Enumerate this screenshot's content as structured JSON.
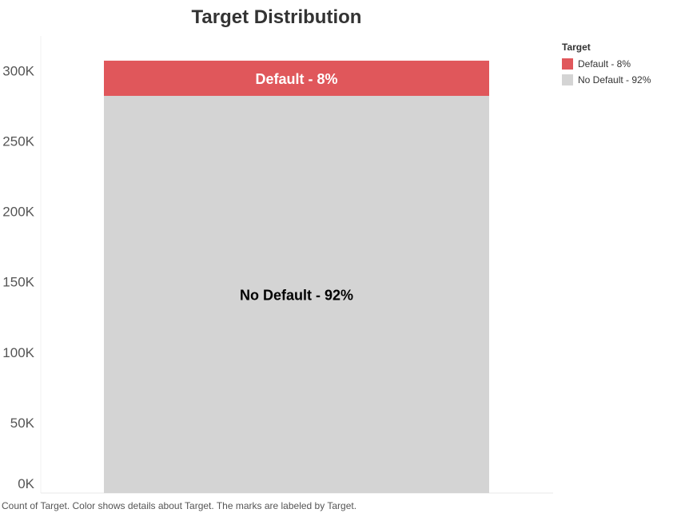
{
  "chart_data": {
    "type": "bar",
    "stacked": true,
    "title": "Target Distribution",
    "categories": [
      ""
    ],
    "series": [
      {
        "name": "No Default - 92%",
        "values": [
          282000
        ],
        "color": "#d4d4d4",
        "label": "No Default - 92%",
        "label_color": "#000000"
      },
      {
        "name": "Default - 8%",
        "values": [
          25000
        ],
        "color": "#e0575b",
        "label": "Default - 8%",
        "label_color": "#ffffff"
      }
    ],
    "ylim": [
      0,
      320000
    ],
    "yticks": [
      0,
      50000,
      100000,
      150000,
      200000,
      250000,
      300000
    ],
    "ytick_labels": [
      "0K",
      "50K",
      "100K",
      "150K",
      "200K",
      "250K",
      "300K"
    ],
    "xlabel": "",
    "ylabel": "",
    "grid": false,
    "legend": {
      "title": "Target",
      "position": "top-right"
    }
  },
  "caption": "Count of Target.  Color shows details about Target.  The marks are labeled by Target."
}
